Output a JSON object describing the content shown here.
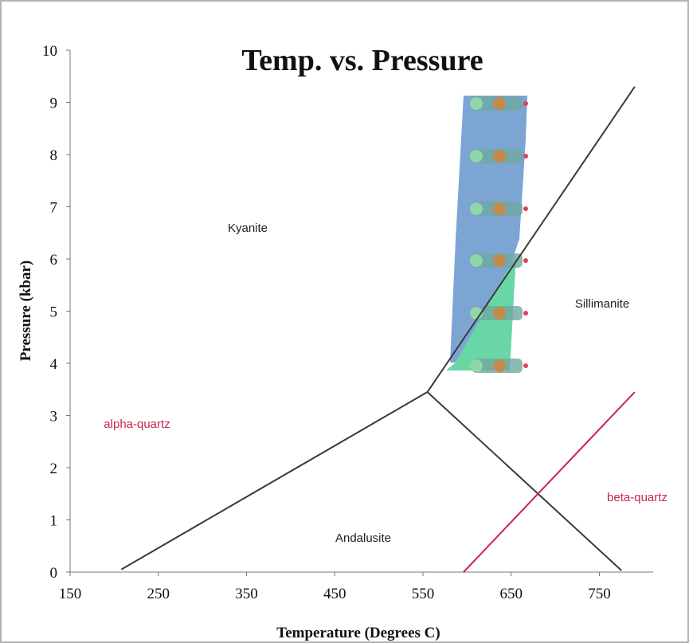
{
  "chart_data": {
    "type": "line",
    "title": "Temp. vs. Pressure",
    "x_label": "Temperature (Degrees C)",
    "y_label": "Pressure (kbar)",
    "xlim": [
      150,
      810
    ],
    "xticks": [
      150,
      250,
      350,
      450,
      550,
      650,
      750
    ],
    "ylim": [
      0,
      10
    ],
    "yticks": [
      0,
      1,
      2,
      3,
      4,
      5,
      6,
      7,
      8,
      9,
      10
    ],
    "grid": false,
    "series": [
      {
        "color": "#3a3a3a",
        "x": [
          208,
          555
        ],
        "values": [
          0.05,
          3.45
        ]
      },
      {
        "color": "#3a3a3a",
        "x": [
          555,
          790
        ],
        "values": [
          3.45,
          9.3
        ]
      },
      {
        "color": "#3a3a3a",
        "x": [
          555,
          775
        ],
        "values": [
          3.45,
          0.03
        ]
      },
      {
        "color": "#c8264b",
        "x": [
          596,
          790
        ],
        "values": [
          0.0,
          3.45
        ]
      }
    ],
    "annotations": [
      {
        "text": "Kyanite",
        "color": "#222"
      },
      {
        "text": "Sillimanite",
        "color": "#222"
      },
      {
        "text": "Andalusite",
        "color": "#222"
      },
      {
        "text": "alpha-quartz",
        "color": "#c8264b"
      },
      {
        "text": "beta-quartz",
        "color": "#c8264b"
      }
    ]
  }
}
